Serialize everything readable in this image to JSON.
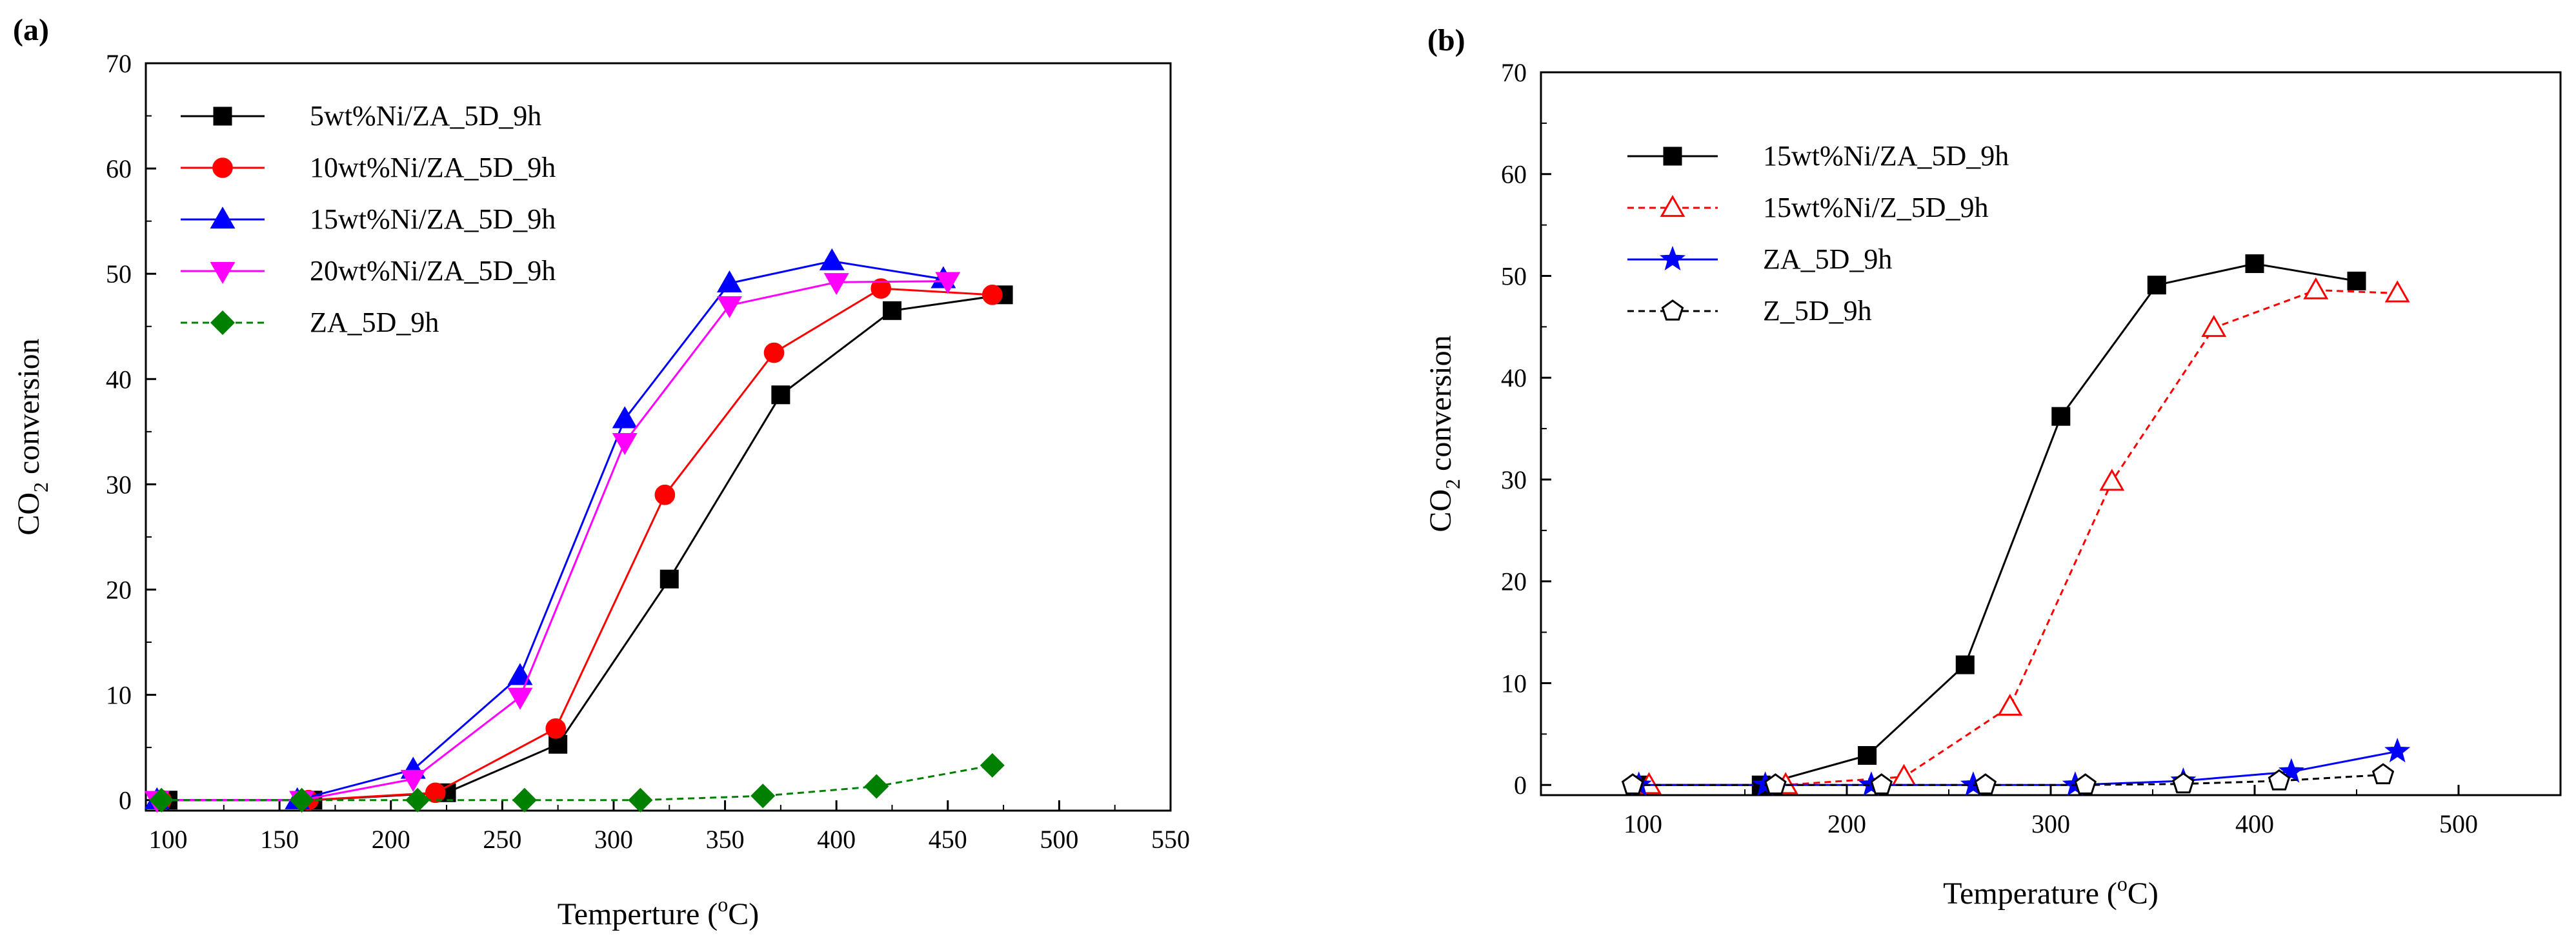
{
  "chart_data": [
    {
      "type": "line",
      "panel_label": "(a)",
      "title": "",
      "xlabel": "Temperture (°C)",
      "xlabel_parts": [
        "Temperture (",
        "o",
        "C)"
      ],
      "ylabel": "CO2 conversion",
      "ylabel_parts": [
        "CO",
        "2",
        " conversion"
      ],
      "xlim": [
        90,
        550
      ],
      "ylim": [
        -1,
        70
      ],
      "xticks": [
        100,
        150,
        200,
        250,
        300,
        350,
        400,
        450,
        500,
        550
      ],
      "yticks": [
        0,
        10,
        20,
        30,
        40,
        50,
        60,
        70
      ],
      "grid": false,
      "legend_position": "top-left",
      "series": [
        {
          "name": "5wt%Ni/ZA_5D_9h",
          "color": "#000000",
          "marker": "square",
          "filled": true,
          "dashed": false,
          "x": [
            100,
            165,
            225,
            275,
            325,
            375,
            425,
            475
          ],
          "y": [
            0,
            0,
            0.7,
            5.3,
            21,
            38.5,
            46.5,
            48
          ]
        },
        {
          "name": "10wt%Ni/ZA_5D_9h",
          "color": "#ff0000",
          "marker": "circle",
          "filled": true,
          "dashed": false,
          "x": [
            97,
            163,
            220,
            274,
            323,
            372,
            420,
            470
          ],
          "y": [
            0,
            0,
            0.7,
            6.8,
            29,
            42.5,
            48.6,
            48
          ]
        },
        {
          "name": "15wt%Ni/ZA_5D_9h",
          "color": "#0000ff",
          "marker": "triangle-up",
          "filled": true,
          "dashed": false,
          "x": [
            95,
            158,
            210,
            258,
            305,
            352,
            398,
            448
          ],
          "y": [
            0,
            0,
            2.9,
            11.8,
            36.2,
            49.1,
            51.2,
            49.5
          ]
        },
        {
          "name": "20wt%Ni/ZA_5D_9h",
          "color": "#ff00ff",
          "marker": "triangle-down",
          "filled": true,
          "dashed": false,
          "x": [
            95,
            160,
            210,
            258,
            305,
            352,
            400,
            450
          ],
          "y": [
            0,
            0,
            2,
            9.8,
            34,
            47,
            49.2,
            49.3
          ]
        },
        {
          "name": "ZA_5D_9h",
          "color": "#008000",
          "marker": "diamond",
          "filled": true,
          "dashed": true,
          "x": [
            97,
            160,
            212,
            260,
            312,
            367,
            418,
            470
          ],
          "y": [
            0,
            0,
            0,
            0,
            0,
            0.4,
            1.3,
            3.3
          ]
        }
      ]
    },
    {
      "type": "line",
      "panel_label": "(b)",
      "title": "",
      "xlabel": "Temperature (°C)",
      "xlabel_parts": [
        "Temperature (",
        "o",
        "C)"
      ],
      "ylabel": "CO2 conversion",
      "ylabel_parts": [
        "CO",
        "2",
        " conversion"
      ],
      "xlim": [
        50,
        550
      ],
      "ylim": [
        -1,
        70
      ],
      "xticks": [
        100,
        200,
        300,
        400,
        500
      ],
      "yticks": [
        0,
        10,
        20,
        30,
        40,
        50,
        60,
        70
      ],
      "grid": false,
      "legend_position": "top-left",
      "series": [
        {
          "name": "15wt%Ni/ZA_5D_9h",
          "color": "#000000",
          "marker": "square",
          "filled": true,
          "dashed": false,
          "x": [
            98,
            158,
            210,
            258,
            305,
            352,
            400,
            450
          ],
          "y": [
            0,
            0,
            2.9,
            11.8,
            36.2,
            49.1,
            51.2,
            49.5
          ]
        },
        {
          "name": "15wt%Ni/Z_5D_9h",
          "color": "#ff0000",
          "marker": "triangle-up",
          "filled": false,
          "dashed": true,
          "x": [
            103,
            170,
            228,
            280,
            330,
            380,
            430,
            470
          ],
          "y": [
            0,
            0,
            0.8,
            7.7,
            29.8,
            44.9,
            48.6,
            48.3
          ]
        },
        {
          "name": "ZA_5D_9h",
          "color": "#0000ff",
          "marker": "star",
          "filled": true,
          "dashed": false,
          "x": [
            98,
            160,
            212,
            262,
            312,
            365,
            418,
            470
          ],
          "y": [
            0,
            0,
            0,
            0,
            0,
            0.4,
            1.3,
            3.3
          ]
        },
        {
          "name": "Z_5D_9h",
          "color": "#000000",
          "marker": "pentagon",
          "filled": false,
          "dashed": true,
          "x": [
            95,
            165,
            217,
            268,
            317,
            365,
            412,
            463
          ],
          "y": [
            0,
            0,
            0,
            0,
            0,
            0.1,
            0.4,
            1
          ]
        }
      ]
    }
  ]
}
